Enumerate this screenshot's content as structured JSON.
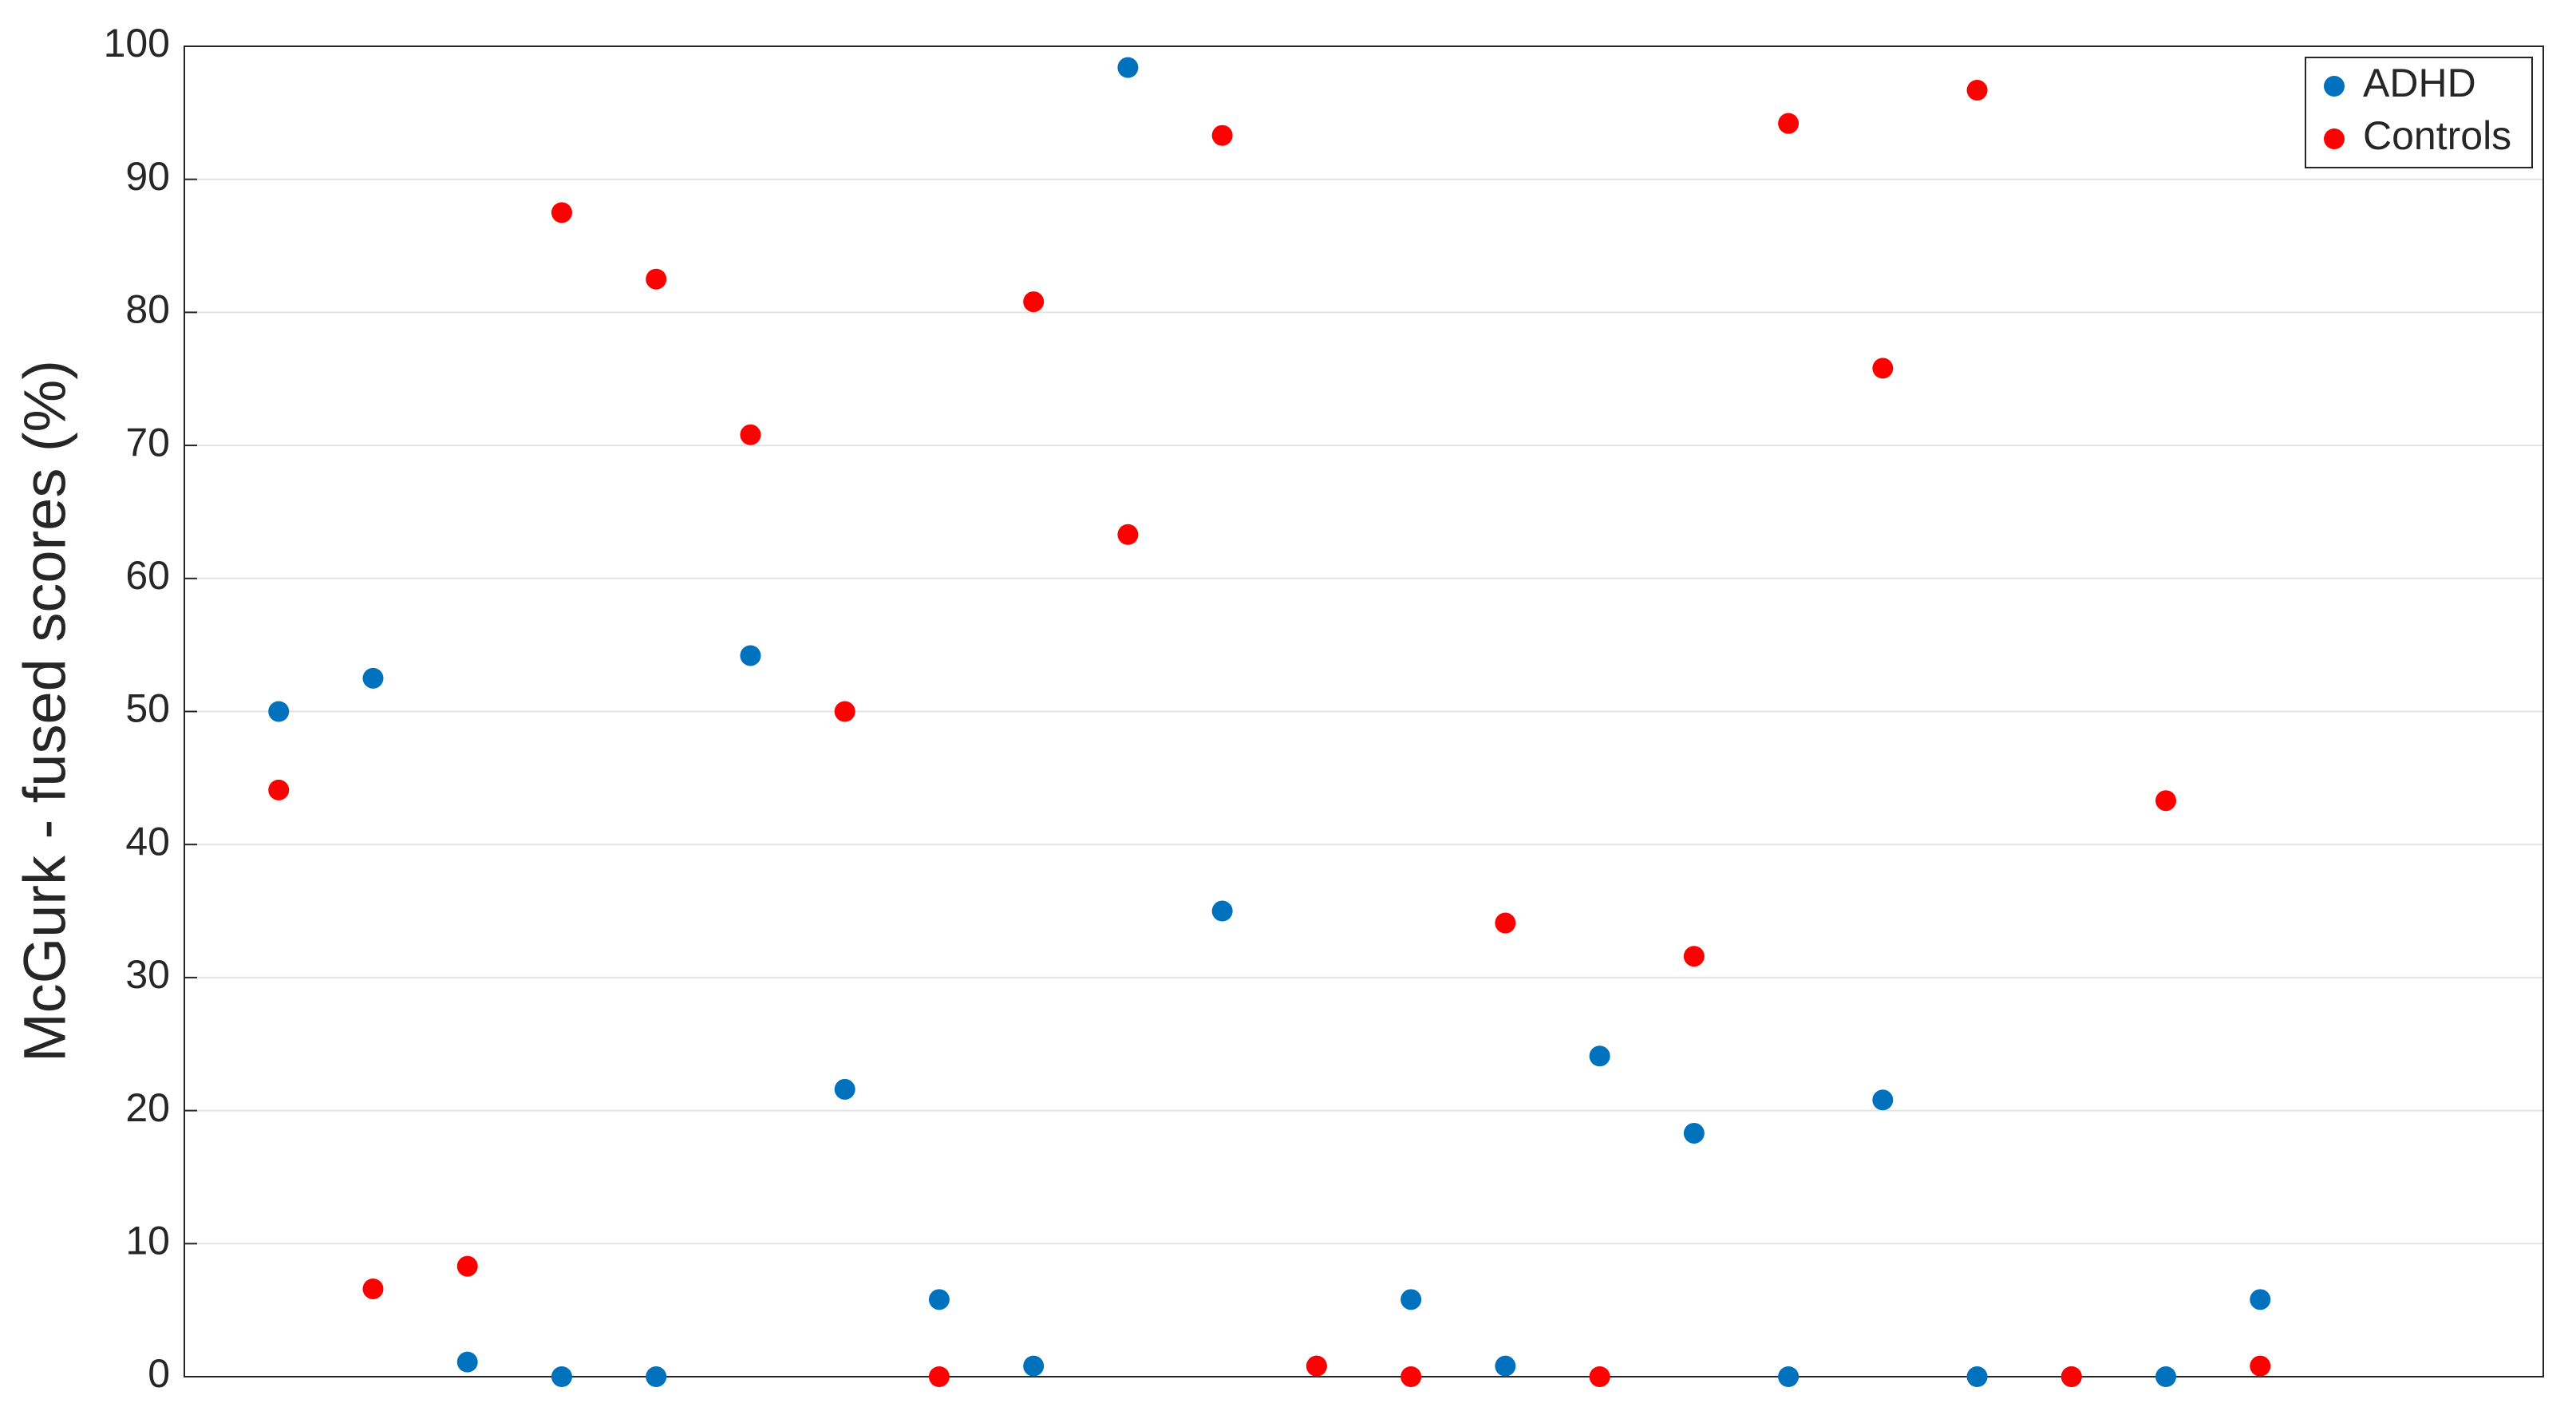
{
  "chart_data": {
    "type": "scatter",
    "y_label": "McGurk - fused scores (%)",
    "x": [
      1,
      2,
      3,
      4,
      5,
      6,
      7,
      8,
      9,
      10,
      11,
      12,
      13,
      14,
      15,
      16,
      17,
      18,
      19,
      20,
      21,
      22
    ],
    "xlim": [
      0,
      25
    ],
    "ylim": [
      0,
      100
    ],
    "yticks": [
      0,
      10,
      20,
      30,
      40,
      50,
      60,
      70,
      80,
      90,
      100
    ],
    "grid": true,
    "legend": "upper right",
    "series": [
      {
        "name": "ADHD",
        "color": "#0072bd",
        "values": [
          50,
          52.5,
          1.1,
          0,
          0,
          54.2,
          21.6,
          5.8,
          0.8,
          98.4,
          35,
          0.8,
          5.8,
          0.8,
          24.1,
          18.3,
          0,
          20.8,
          0,
          0,
          0,
          5.8
        ]
      },
      {
        "name": "Controls",
        "color": "#ff0000",
        "values": [
          44.1,
          6.6,
          8.3,
          87.5,
          82.5,
          70.8,
          50,
          0,
          80.8,
          63.3,
          93.3,
          0.8,
          0,
          34.1,
          0,
          31.6,
          94.2,
          75.8,
          96.7,
          0,
          43.3,
          0.8
        ]
      }
    ]
  }
}
